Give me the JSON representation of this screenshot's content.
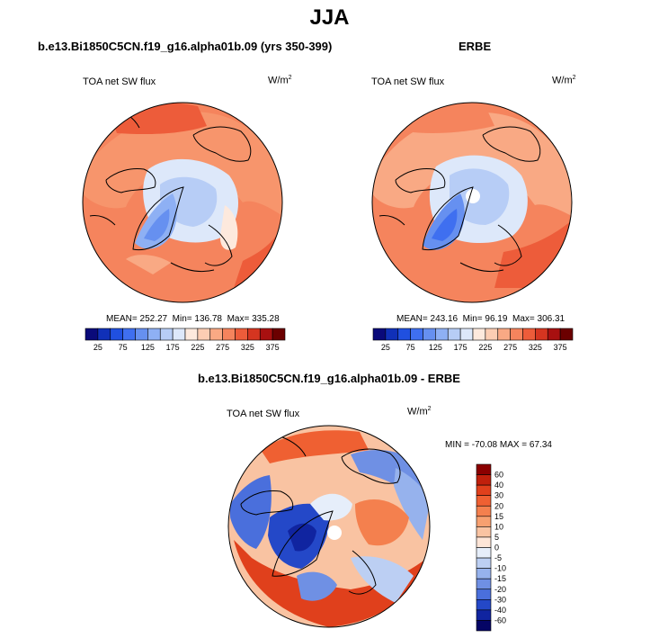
{
  "figure": {
    "title": "JJA"
  },
  "panels": [
    {
      "title": "b.e13.Bi1850C5CN.f19_g16.alpha01b.09 (yrs 350-399)",
      "variable": "TOA net SW flux",
      "units_base": "W/m",
      "units_sup": "2",
      "stats": {
        "mean": "MEAN= 252.27",
        "min": "Min= 136.78",
        "max": "Max= 335.28"
      }
    },
    {
      "title": "ERBE",
      "variable": "TOA net SW flux",
      "units_base": "W/m",
      "units_sup": "2",
      "stats": {
        "mean": "MEAN= 243.16",
        "min": "Min= 96.19",
        "max": "Max= 306.31"
      }
    },
    {
      "title": "b.e13.Bi1850C5CN.f19_g16.alpha01b.09 - ERBE",
      "variable": "TOA net SW flux",
      "units_base": "W/m",
      "units_sup": "2",
      "stats": {
        "minmax": "MIN = -70.08 MAX =  67.34"
      }
    }
  ],
  "chart_data": [
    {
      "type": "heatmap",
      "title": "b.e13.Bi1850C5CN.f19_g16.alpha01b.09 (yrs 350-399)",
      "projection": "north polar stereographic",
      "variable": "TOA net SW flux",
      "units": "W/m2",
      "mean": 252.27,
      "min": 136.78,
      "max": 335.28,
      "colorbar": {
        "orientation": "horizontal",
        "levels": [
          25,
          50,
          75,
          100,
          125,
          150,
          175,
          200,
          225,
          250,
          275,
          300,
          325,
          350,
          375
        ],
        "tick_labels": [
          "25",
          "75",
          "125",
          "175",
          "225",
          "275",
          "325",
          "375"
        ],
        "colors": [
          "#0a0a7a",
          "#1030b8",
          "#2050e0",
          "#3f6ff0",
          "#6690f0",
          "#8eb0f4",
          "#b7cdf6",
          "#dde8fa",
          "#fde9dd",
          "#fccdb3",
          "#f9a984",
          "#f5845d",
          "#ed5c3a",
          "#d53520",
          "#a81010",
          "#6b0000"
        ]
      },
      "regions": [
        {
          "name": "ocean_and_land_midlatitudes",
          "approx_value": 300
        },
        {
          "name": "arctic_ocean",
          "approx_value": 215
        },
        {
          "name": "greenland",
          "approx_value": 150
        }
      ]
    },
    {
      "type": "heatmap",
      "title": "ERBE",
      "projection": "north polar stereographic",
      "variable": "TOA net SW flux",
      "units": "W/m2",
      "mean": 243.16,
      "min": 96.19,
      "max": 306.31,
      "colorbar": {
        "orientation": "horizontal",
        "levels": [
          25,
          50,
          75,
          100,
          125,
          150,
          175,
          200,
          225,
          250,
          275,
          300,
          325,
          350,
          375
        ],
        "tick_labels": [
          "25",
          "75",
          "125",
          "175",
          "225",
          "275",
          "325",
          "375"
        ],
        "colors": [
          "#0a0a7a",
          "#1030b8",
          "#2050e0",
          "#3f6ff0",
          "#6690f0",
          "#8eb0f4",
          "#b7cdf6",
          "#dde8fa",
          "#fde9dd",
          "#fccdb3",
          "#f9a984",
          "#f5845d",
          "#ed5c3a",
          "#d53520",
          "#a81010",
          "#6b0000"
        ]
      },
      "regions": [
        {
          "name": "ocean_and_land_midlatitudes",
          "approx_value": 285
        },
        {
          "name": "arctic_ocean",
          "approx_value": 185
        },
        {
          "name": "greenland",
          "approx_value": 110
        },
        {
          "name": "north_pole_missing",
          "approx_value": null
        }
      ]
    },
    {
      "type": "heatmap",
      "title": "b.e13.Bi1850C5CN.f19_g16.alpha01b.09 - ERBE",
      "projection": "north polar stereographic",
      "variable": "TOA net SW flux",
      "units": "W/m2",
      "min": -70.08,
      "max": 67.34,
      "colorbar": {
        "orientation": "vertical",
        "levels": [
          -60,
          -40,
          -30,
          -20,
          -15,
          -10,
          -5,
          0,
          5,
          10,
          15,
          20,
          30,
          40,
          60
        ],
        "tick_labels": [
          "60",
          "40",
          "30",
          "20",
          "15",
          "10",
          "5",
          "0",
          "-5",
          "-10",
          "-15",
          "-20",
          "-30",
          "-40",
          "-60"
        ],
        "colors": [
          "#8b0000",
          "#c0200c",
          "#e0401c",
          "#ef6032",
          "#f4804e",
          "#f7a070",
          "#f9c3a2",
          "#fde5d7",
          "#e6eefa",
          "#bccff3",
          "#96b2ed",
          "#6f90e4",
          "#4a6fdc",
          "#2448c8",
          "#1024a0",
          "#050565"
        ]
      }
    }
  ]
}
